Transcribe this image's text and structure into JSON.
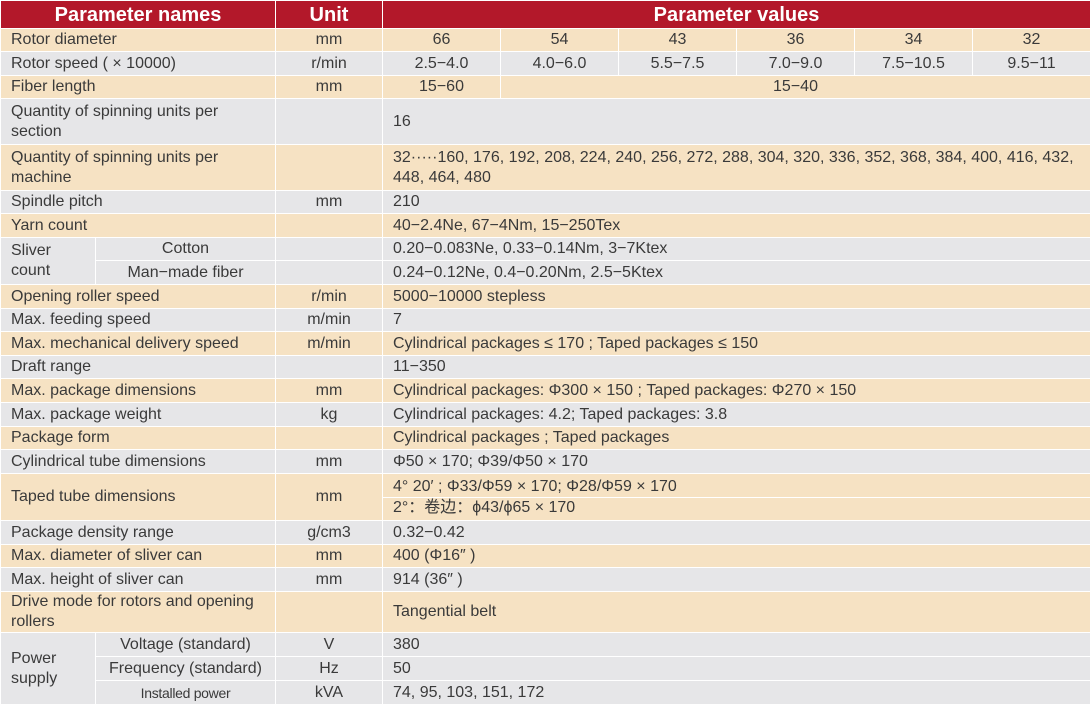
{
  "header": {
    "names": "Parameter names",
    "unit": "Unit",
    "values": "Parameter values"
  },
  "colors": {
    "header": "#b3182a",
    "band_a": "#f6e2c3",
    "band_b": "#e6e6e8"
  },
  "rows": [
    {
      "name": "Rotor diameter",
      "unit": "mm",
      "values": [
        "66",
        "54",
        "43",
        "36",
        "34",
        "32"
      ]
    },
    {
      "name": "Rotor speed ( × 10000)",
      "unit": "r/min",
      "values": [
        "2.5−4.0",
        "4.0−6.0",
        "5.5−7.5",
        "7.0−9.0",
        "7.5−10.5",
        "9.5−11"
      ]
    },
    {
      "name": "Fiber length",
      "unit": "mm",
      "values": [
        "15−60",
        "15−40"
      ]
    },
    {
      "name": "Quantity of spinning units per section",
      "unit": "",
      "values": [
        "16"
      ]
    },
    {
      "name": "Quantity of spinning units per machine",
      "unit": "",
      "values": [
        "32·····160, 176, 192, 208, 224,  240, 256, 272, 288, 304,  320, 336, 352, 368, 384, 400, 416, 432, 448, 464, 480"
      ]
    },
    {
      "name": "Spindle pitch",
      "unit": "mm",
      "values": [
        "210"
      ]
    },
    {
      "name": "Yarn count",
      "unit": "",
      "values": [
        "40−2.4Ne,  67−4Nm,  15−250Tex"
      ]
    },
    {
      "group": "Sliver count",
      "name": "Cotton",
      "unit": "",
      "values": [
        "0.20−0.083Ne,  0.33−0.14Nm,  3−7Ktex"
      ]
    },
    {
      "group": "Sliver count",
      "name": "Man−made fiber",
      "unit": "",
      "values": [
        "0.24−0.12Ne,  0.4−0.20Nm,  2.5−5Ktex"
      ]
    },
    {
      "name": "Opening roller speed",
      "unit": "r/min",
      "values": [
        "5000−10000 stepless"
      ]
    },
    {
      "name": "Max. feeding speed",
      "unit": "m/min",
      "values": [
        "7"
      ]
    },
    {
      "name": "Max. mechanical delivery speed",
      "unit": "m/min",
      "values": [
        "Cylindrical packages ≤ 170 ;     Taped packages ≤ 150"
      ]
    },
    {
      "name": "Draft range",
      "unit": "",
      "values": [
        "11−350"
      ]
    },
    {
      "name": "Max. package dimensions",
      "unit": "mm",
      "values": [
        "Cylindrical packages: Φ300 × 150 ;     Taped packages: Φ270 × 150"
      ]
    },
    {
      "name": "Max. package weight",
      "unit": "kg",
      "values": [
        "Cylindrical packages: 4.2;     Taped packages: 3.8"
      ]
    },
    {
      "name": "Package form",
      "unit": "",
      "values": [
        "Cylindrical packages ;     Taped packages"
      ]
    },
    {
      "name": "Cylindrical tube dimensions",
      "unit": "mm",
      "values": [
        "Φ50 × 170;     Φ39/Φ50 × 170"
      ]
    },
    {
      "name": "Taped tube dimensions",
      "unit": "mm",
      "values": [
        "4° 20′  ;  Φ33/Φ59 × 170;     Φ28/Φ59 × 170"
      ],
      "value_line2": "2°：卷边：ϕ43/ϕ65 × 170"
    },
    {
      "name": "Package density range",
      "unit": "g/cm3",
      "values": [
        "0.32−0.42"
      ]
    },
    {
      "name": "Max. diameter of sliver can",
      "unit": "mm",
      "values": [
        "400 (Φ16″  )"
      ]
    },
    {
      "name": "Max. height of sliver can",
      "unit": "mm",
      "values": [
        "914 (36″  )"
      ]
    },
    {
      "name": "Drive mode for rotors and opening rollers",
      "unit": "",
      "values": [
        "Tangential belt"
      ]
    },
    {
      "group": "Power supply",
      "name": "Voltage (standard)",
      "unit": "V",
      "values": [
        "380"
      ]
    },
    {
      "group": "Power supply",
      "name": "Frequency (standard)",
      "unit": "Hz",
      "values": [
        "50"
      ]
    },
    {
      "group": "Power supply",
      "name": "Installed power",
      "unit": "kVA",
      "values": [
        "74,  95,  103,  151,  172"
      ]
    }
  ]
}
